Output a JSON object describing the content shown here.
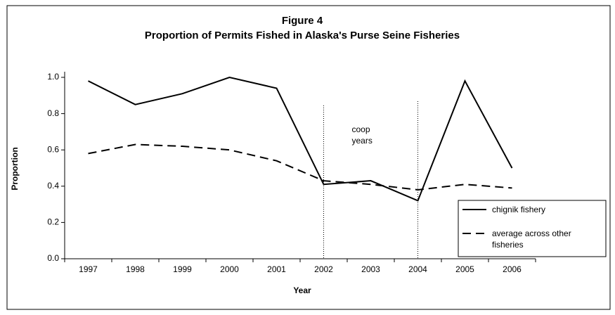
{
  "chart_data": {
    "type": "line",
    "title": "Figure 4",
    "subtitle": "Proportion of Permits Fished in Alaska's Purse Seine Fisheries",
    "x_label": "Year",
    "y_label": "Proportion",
    "categories": [
      "1997",
      "1998",
      "1999",
      "2000",
      "2001",
      "2002",
      "2003",
      "2004",
      "2005",
      "2006"
    ],
    "series": [
      {
        "name": "chignik fishery",
        "color": "#000000",
        "dash": "solid",
        "values": [
          0.98,
          0.85,
          0.91,
          1.0,
          0.94,
          0.41,
          0.43,
          0.32,
          0.98,
          0.5
        ]
      },
      {
        "name": "average across other fisheries",
        "color": "#000000",
        "dash": "dashed",
        "values": [
          0.58,
          0.63,
          0.62,
          0.6,
          0.54,
          0.43,
          0.41,
          0.38,
          0.41,
          0.39
        ]
      }
    ],
    "ylim": [
      0,
      1.0
    ],
    "yticks": [
      {
        "value": 0,
        "label": "0.0"
      },
      0.2,
      0.4,
      0.6,
      0.8,
      {
        "value": 1.0,
        "label": "1.0"
      }
    ],
    "grid": false,
    "legend": "right",
    "annotation": {
      "text": "coop years",
      "from": "2002",
      "to": "2004"
    }
  }
}
